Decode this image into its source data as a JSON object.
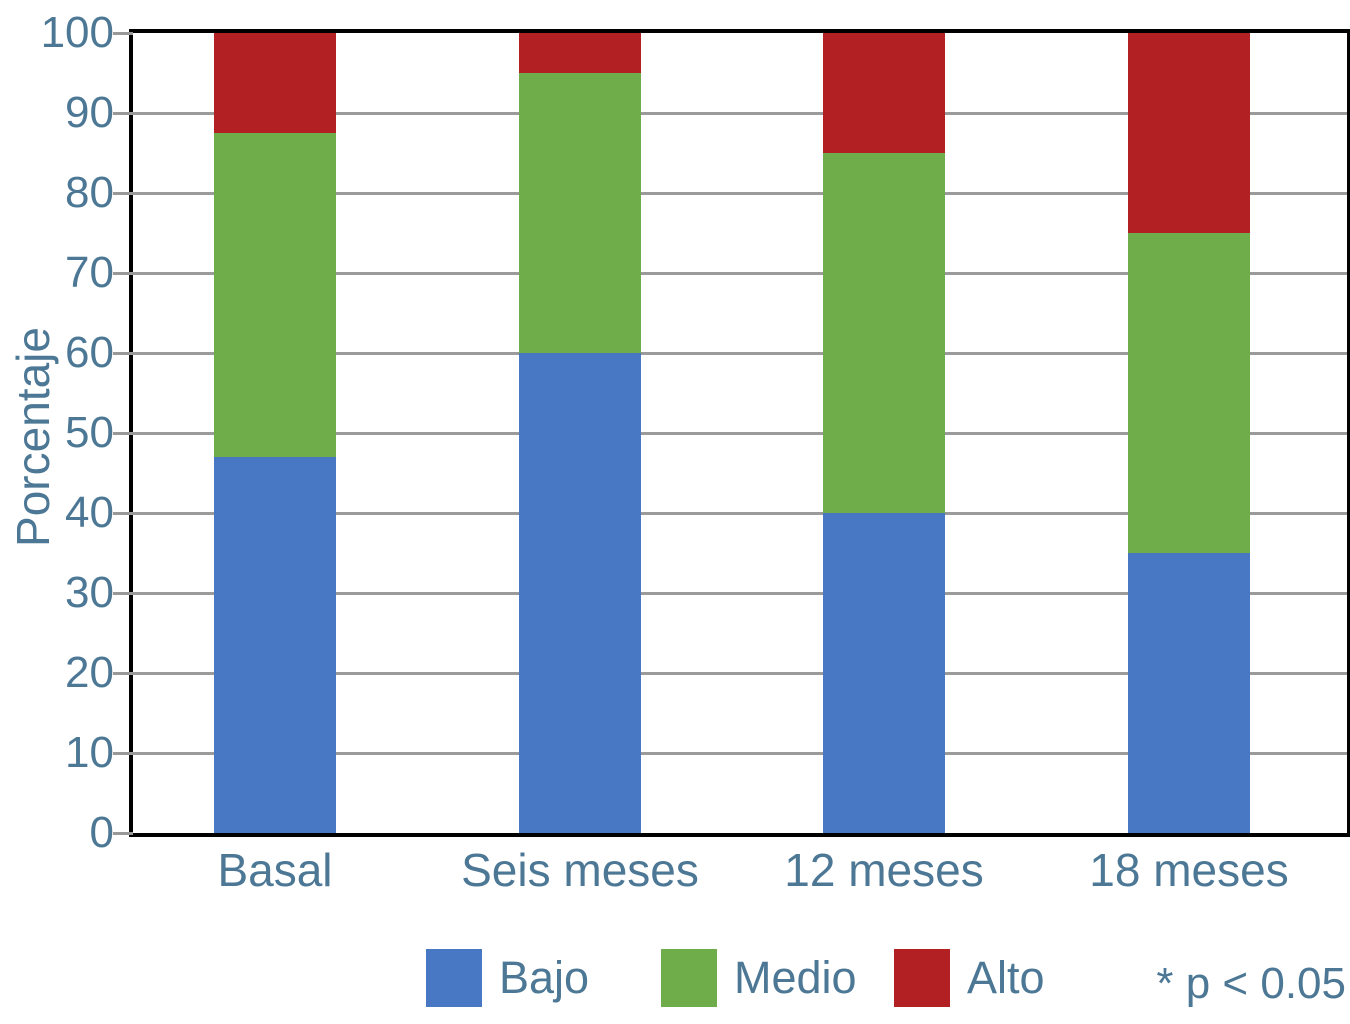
{
  "chart_data": {
    "type": "bar",
    "stacked": true,
    "categories": [
      "Basal",
      "Seis meses",
      "12 meses",
      "18 meses"
    ],
    "series": [
      {
        "name": "Bajo",
        "color": "#4878c4",
        "values": [
          47,
          60,
          40,
          35
        ]
      },
      {
        "name": "Medio",
        "color": "#6fad4b",
        "values": [
          40.5,
          35,
          45,
          40
        ]
      },
      {
        "name": "Alto",
        "color": "#b32024",
        "values": [
          12.5,
          5,
          15,
          25
        ]
      }
    ],
    "ylabel": "Porcentaje",
    "xlabel": "",
    "title": "",
    "ylim": [
      0,
      100
    ],
    "yticks": [
      "0",
      "10",
      "20",
      "30",
      "40",
      "50",
      "60",
      "70",
      "80",
      "90",
      "100"
    ],
    "grid": "horizontal",
    "legend_position": "bottom",
    "annotation": "* p < 0.05"
  },
  "colors": {
    "text": "#4c7795",
    "grid": "#9b9b9b",
    "tick": "#999999",
    "axis_border": "#000000",
    "background": "#ffffff"
  }
}
